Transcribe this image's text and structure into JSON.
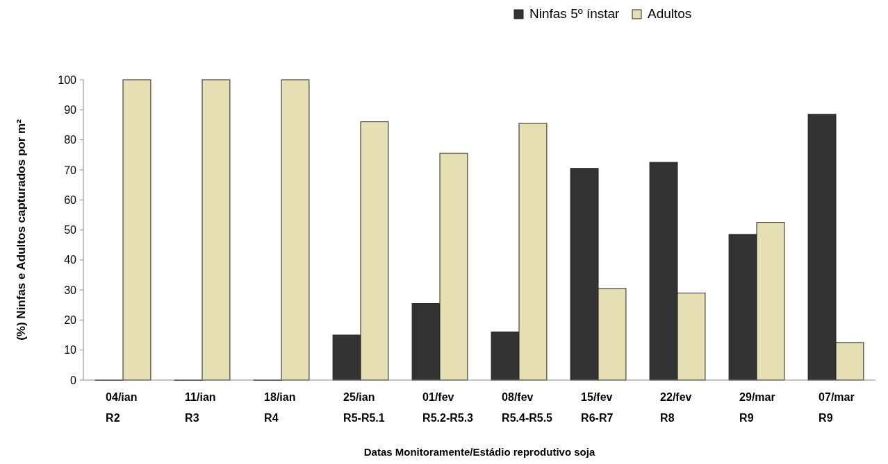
{
  "chart_data": {
    "type": "bar",
    "xlabel": "Datas Monitoramente/Estádio reprodutivo soja",
    "ylabel": "(%) Ninfas e Adultos  capturados por m²",
    "categories": [
      "04/ian\nR2",
      "11/ian\nR3",
      "18/ian\nR4",
      "25/ian\nR5-R5.1",
      "01/fev\nR5.2-R5.3",
      "08/fev\nR5.4-R5.5",
      "15/fev\nR6-R7",
      "22/fev\nR8",
      "29/mar\nR9",
      "07/mar\nR9"
    ],
    "series": [
      {
        "name": "Ninfas 5º ínstar",
        "color": "#333333",
        "values": [
          0,
          0,
          0,
          15,
          25.5,
          16,
          70.5,
          72.5,
          48.5,
          88.5
        ]
      },
      {
        "name": "Adultos",
        "color": "#e6dfb4",
        "values": [
          100,
          100,
          100,
          86,
          75.5,
          85.5,
          30.5,
          29,
          52.5,
          12.5
        ]
      }
    ],
    "ylim": [
      0,
      100
    ],
    "yticks": [
      0,
      10,
      20,
      30,
      40,
      50,
      60,
      70,
      80,
      90,
      100
    ],
    "grid": false,
    "legend": "top"
  }
}
